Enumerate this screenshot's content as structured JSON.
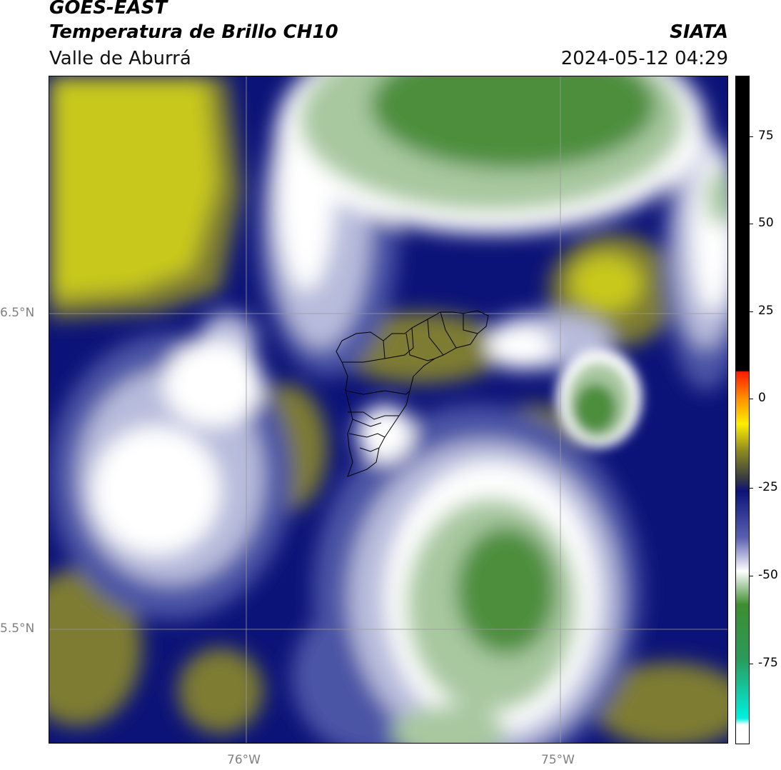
{
  "header": {
    "satellite": "GOES-EAST",
    "product": "Temperatura de Brillo CH10",
    "region": "Valle de Aburrá",
    "agency": "SIATA",
    "datetime": "2024-05-12 04:29"
  },
  "map": {
    "lat_labels": [
      "6.5°N",
      "5.5°N"
    ],
    "lon_labels": [
      "76°W",
      "75°W"
    ],
    "colors": {
      "deep_blue": "#0c1378",
      "mid_blue": "#4c54a6",
      "light_blue": "#b8bcdc",
      "white": "#ffffff",
      "light_green": "#a8c8a0",
      "green": "#4e8e3e",
      "dark_olive": "#3e4236",
      "olive": "#7e7c30",
      "yellow": "#c8c81a"
    }
  },
  "colorbar": {
    "ticks": [
      "75",
      "50",
      "25",
      "0",
      "-25",
      "-50",
      "-75"
    ]
  }
}
